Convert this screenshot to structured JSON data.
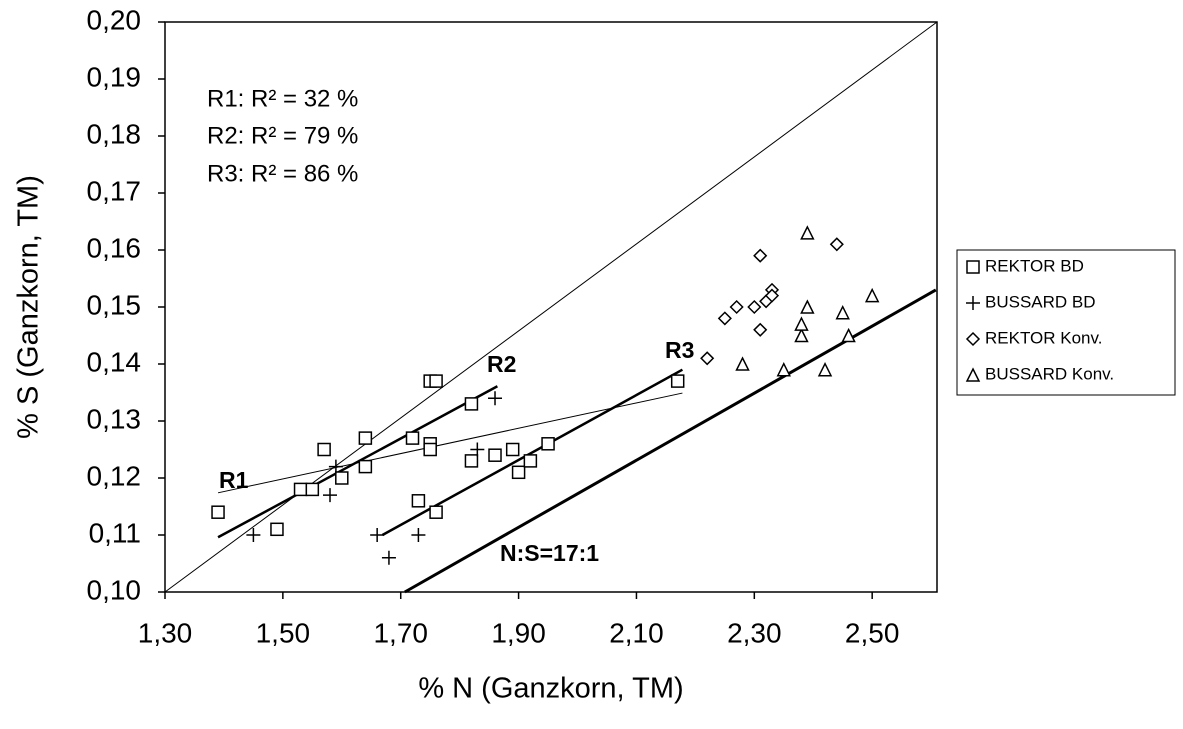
{
  "chart_data": {
    "type": "scatter",
    "x_label": "% N (Ganzkorn, TM)",
    "y_label": "% S (Ganzkorn, TM)",
    "xlim": [
      1.3,
      2.61
    ],
    "ylim": [
      0.1,
      0.2
    ],
    "xticks": [
      {
        "value": 1.3,
        "label": "1,30"
      },
      {
        "value": 1.5,
        "label": "1,50"
      },
      {
        "value": 1.7,
        "label": "1,70"
      },
      {
        "value": 1.9,
        "label": "1,90"
      },
      {
        "value": 2.1,
        "label": "2,10"
      },
      {
        "value": 2.3,
        "label": "2,30"
      },
      {
        "value": 2.5,
        "label": "2,50"
      }
    ],
    "yticks": [
      {
        "value": 0.1,
        "label": "0,10"
      },
      {
        "value": 0.11,
        "label": "0,11"
      },
      {
        "value": 0.12,
        "label": "0,12"
      },
      {
        "value": 0.13,
        "label": "0,13"
      },
      {
        "value": 0.14,
        "label": "0,14"
      },
      {
        "value": 0.15,
        "label": "0,15"
      },
      {
        "value": 0.16,
        "label": "0,16"
      },
      {
        "value": 0.17,
        "label": "0,17"
      },
      {
        "value": 0.18,
        "label": "0,18"
      },
      {
        "value": 0.19,
        "label": "0,19"
      },
      {
        "value": 0.2,
        "label": "0,20"
      }
    ],
    "legend": "right",
    "series": [
      {
        "name": "REKTOR BD",
        "marker": "square",
        "color": "#000000",
        "x": [
          1.39,
          1.49,
          1.53,
          1.55,
          1.57,
          1.6,
          1.64,
          1.64,
          1.72,
          1.73,
          1.75,
          1.76,
          1.75,
          1.75,
          1.76,
          1.82,
          1.82,
          1.86,
          1.89,
          1.9,
          1.92,
          1.95,
          2.17
        ],
        "y": [
          0.114,
          0.111,
          0.118,
          0.118,
          0.125,
          0.12,
          0.122,
          0.127,
          0.127,
          0.116,
          0.137,
          0.137,
          0.126,
          0.125,
          0.114,
          0.133,
          0.123,
          0.124,
          0.125,
          0.121,
          0.123,
          0.126,
          0.137
        ]
      },
      {
        "name": "BUSSARD BD",
        "marker": "plus",
        "color": "#000000",
        "x": [
          1.45,
          1.59,
          1.58,
          1.66,
          1.68,
          1.73,
          1.83,
          1.86
        ],
        "y": [
          0.11,
          0.122,
          0.117,
          0.11,
          0.106,
          0.11,
          0.125,
          0.134
        ]
      },
      {
        "name": "REKTOR Konv.",
        "marker": "diamond",
        "color": "#000000",
        "x": [
          2.22,
          2.25,
          2.27,
          2.31,
          2.3,
          2.31,
          2.32,
          2.33,
          2.33,
          2.44
        ],
        "y": [
          0.141,
          0.148,
          0.15,
          0.159,
          0.15,
          0.146,
          0.151,
          0.153,
          0.152,
          0.161
        ]
      },
      {
        "name": "BUSSARD Konv.",
        "marker": "triangle",
        "color": "#000000",
        "x": [
          2.28,
          2.35,
          2.38,
          2.38,
          2.39,
          2.39,
          2.42,
          2.45,
          2.46,
          2.5
        ],
        "y": [
          0.14,
          0.139,
          0.145,
          0.147,
          0.163,
          0.15,
          0.139,
          0.149,
          0.145,
          0.152
        ]
      }
    ],
    "lines": [
      {
        "x": [
          1.3,
          2.61
        ],
        "y": [
          0.1,
          0.2
        ],
        "width": 1
      },
      {
        "x": [
          1.39,
          2.178
        ],
        "y": [
          0.1174,
          0.1349
        ],
        "width": 1
      },
      {
        "x": [
          1.39,
          1.864
        ],
        "y": [
          0.1096,
          0.1361
        ],
        "width": 2.5
      },
      {
        "x": [
          1.669,
          2.178
        ],
        "y": [
          0.11,
          0.139
        ],
        "width": 2.5
      },
      {
        "x": [
          1.707,
          2.608
        ],
        "y": [
          0.1,
          0.153
        ],
        "width": 3
      }
    ],
    "annotations": [
      "R1: R² = 32 %",
      "R2: R² = 79 %",
      "R3: R² = 86 %",
      "R1",
      "R2",
      "R3",
      "N:S=17:1"
    ]
  }
}
